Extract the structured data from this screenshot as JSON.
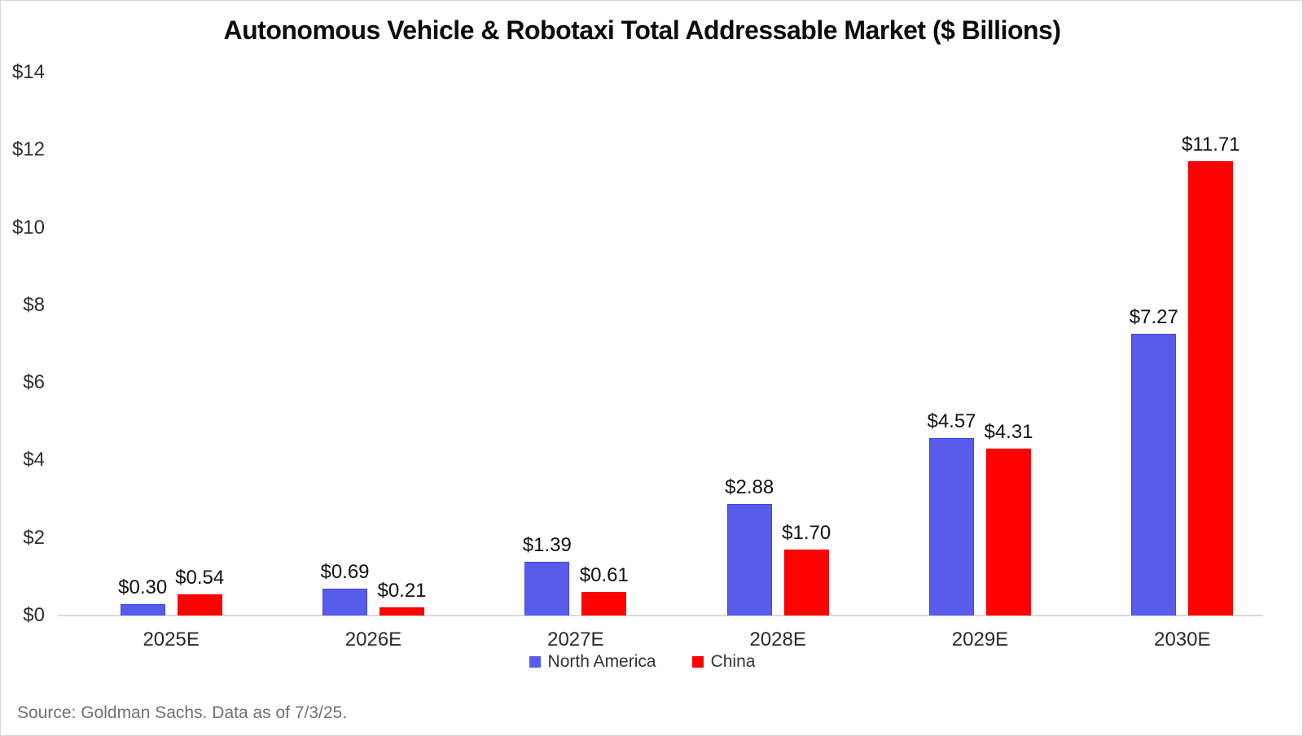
{
  "source_note": "Source: Goldman Sachs. Data as of 7/3/25.",
  "colors": {
    "north_america": "#575CEA",
    "north_america_border": "#4247E2",
    "china": "#FE0100",
    "china_border": "#EE0000",
    "axis_line": "#DADADA"
  },
  "chart_data": {
    "type": "bar",
    "title": "Autonomous Vehicle & Robotaxi Total Addressable Market ($ Billions)",
    "categories": [
      "2025E",
      "2026E",
      "2027E",
      "2028E",
      "2029E",
      "2030E"
    ],
    "series": [
      {
        "name": "North America",
        "color": "#575CEA",
        "border_color": "#4247E2",
        "values": [
          0.3,
          0.69,
          1.39,
          2.88,
          4.57,
          7.27
        ],
        "value_labels": [
          "$0.30",
          "$0.69",
          "$1.39",
          "$2.88",
          "$4.57",
          "$7.27"
        ]
      },
      {
        "name": "China",
        "color": "#FE0100",
        "border_color": "#EE0000",
        "values": [
          0.54,
          0.21,
          0.61,
          1.7,
          4.31,
          11.71
        ],
        "value_labels": [
          "$0.54",
          "$0.21",
          "$0.61",
          "$1.70",
          "$4.31",
          "$11.71"
        ]
      }
    ],
    "xlabel": "",
    "ylabel": "",
    "ylim": [
      0,
      14
    ],
    "ytick_step": 2,
    "ytick_labels": [
      "$0",
      "$2",
      "$4",
      "$6",
      "$8",
      "$10",
      "$12",
      "$14"
    ],
    "value_prefix": "$",
    "grid": false,
    "legend_position": "bottom"
  }
}
